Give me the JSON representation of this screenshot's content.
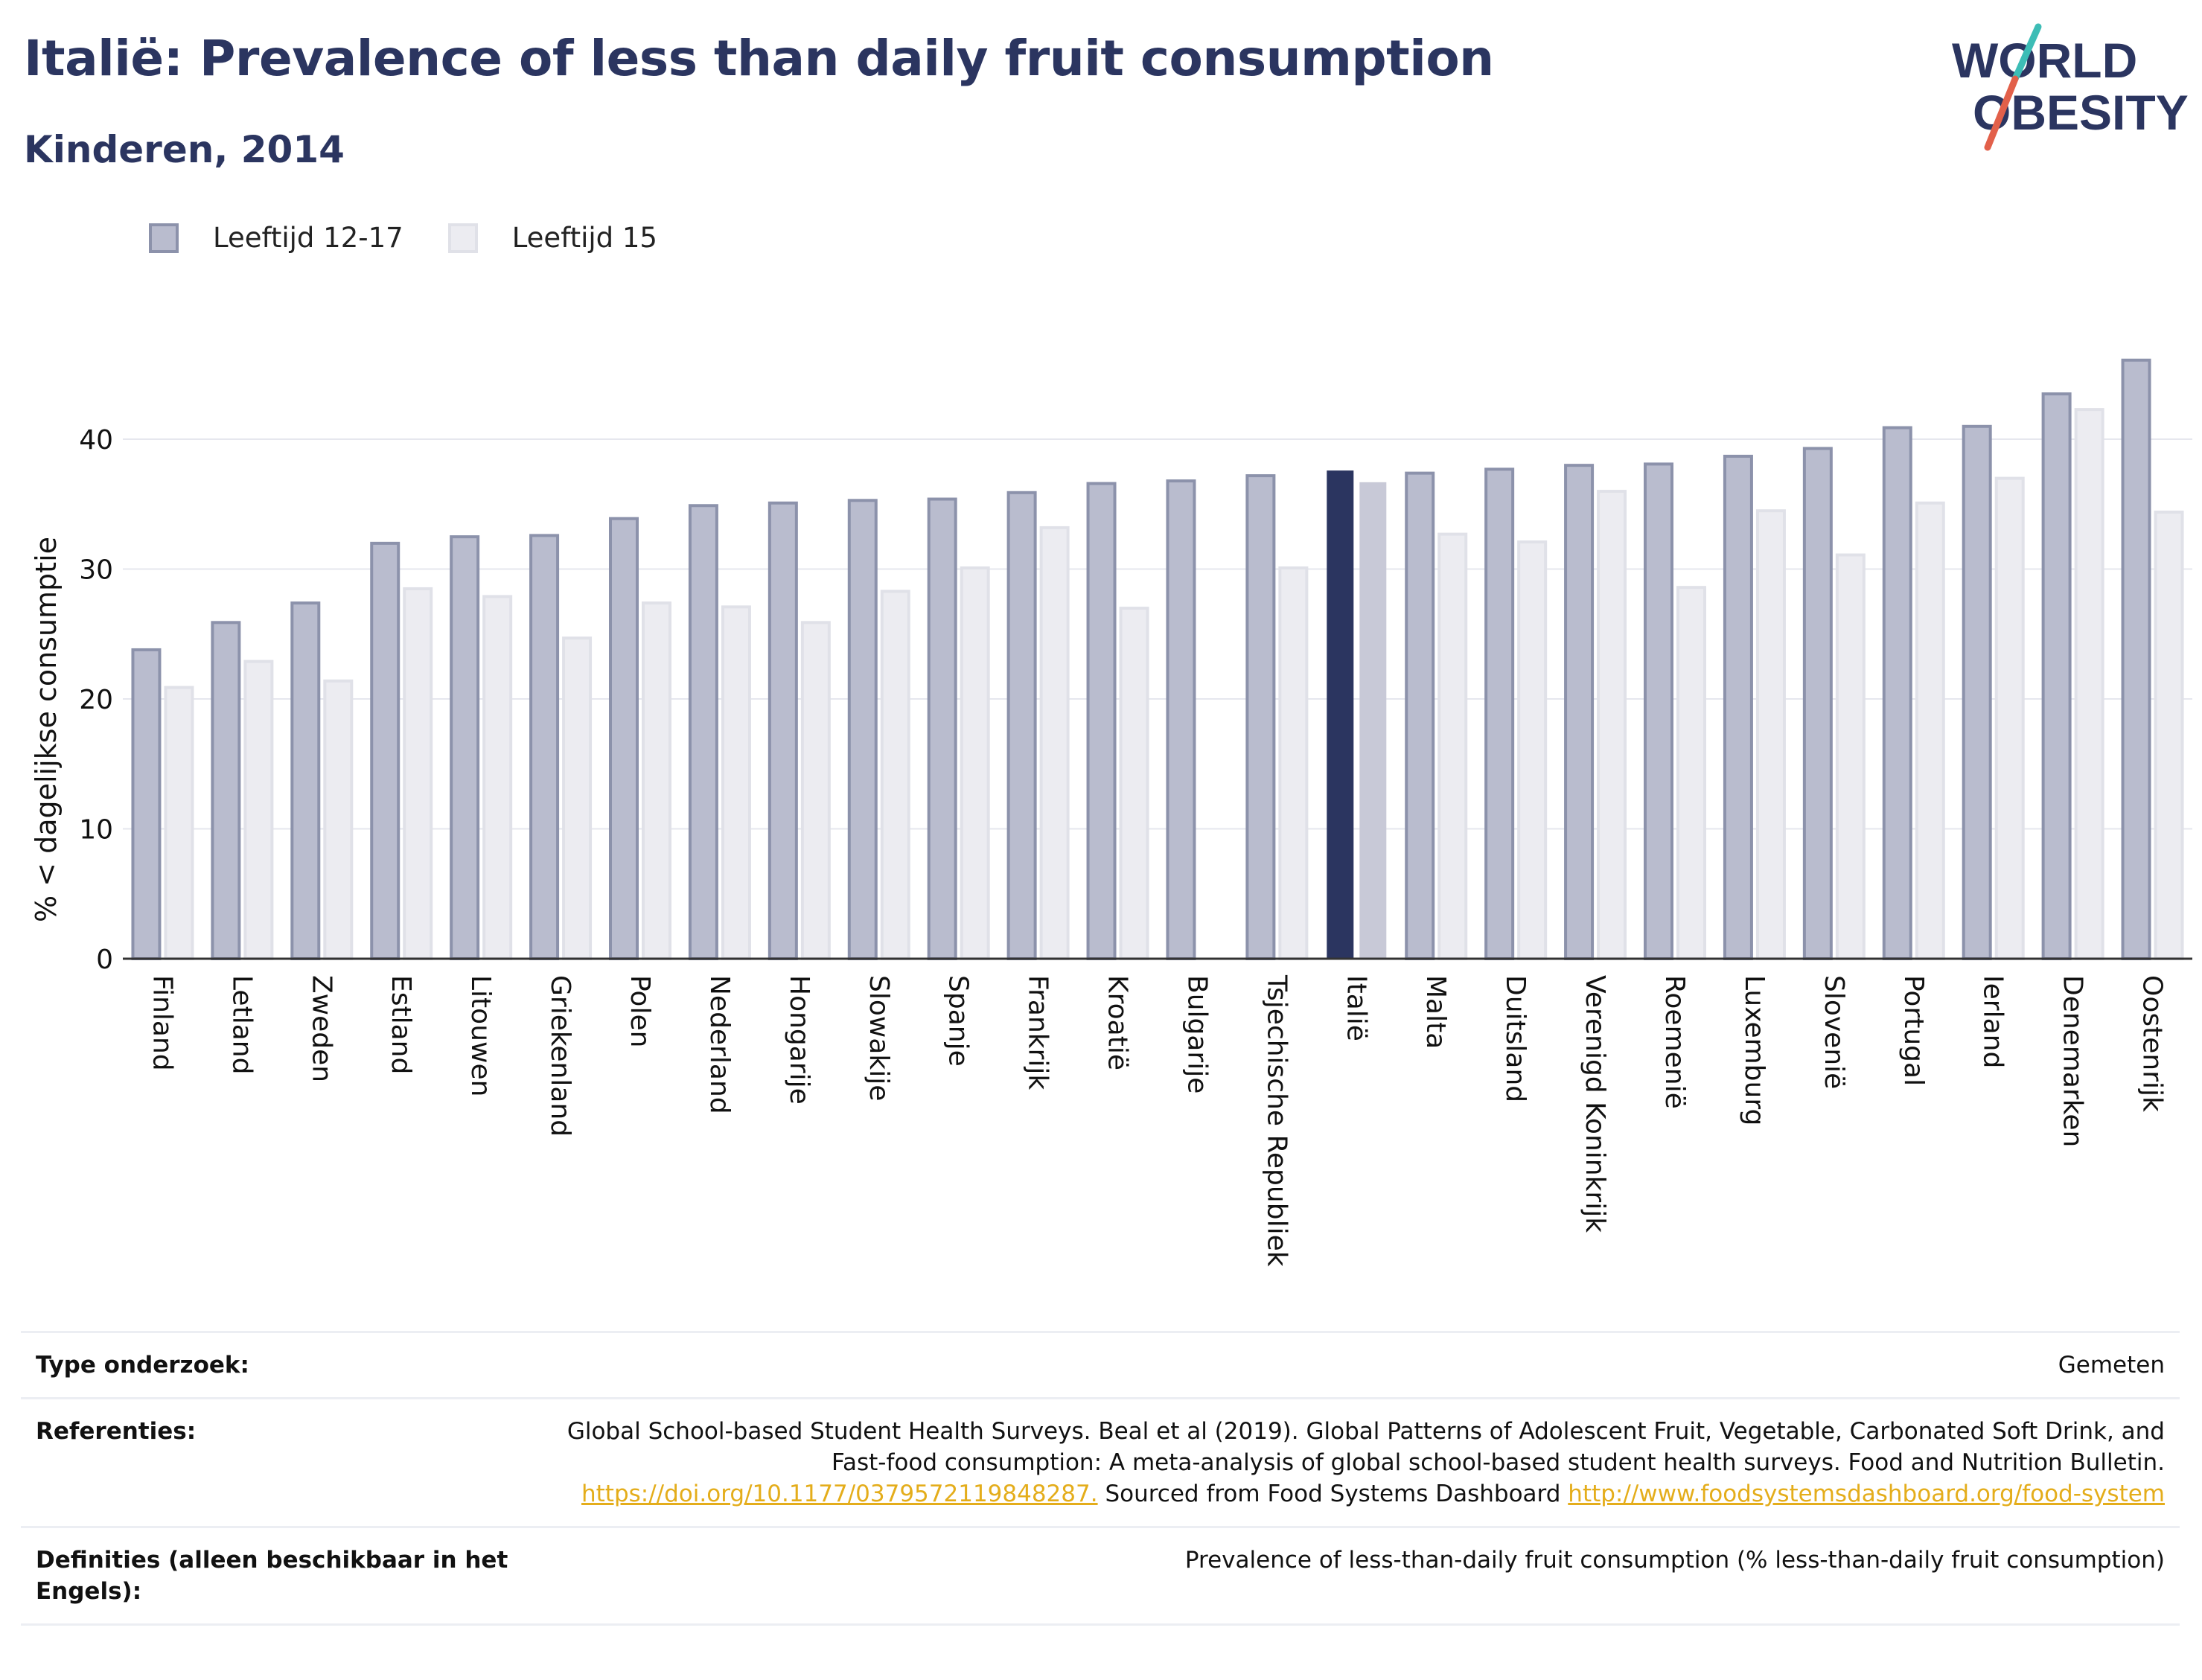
{
  "header": {
    "title": "Italië: Prevalence of less than daily fruit consumption",
    "subtitle": "Kinderen, 2014"
  },
  "logo": {
    "line1": "WORLD",
    "line2": "OBESITY",
    "colors": {
      "text": "#2b3560",
      "slash_top": "#3dbdb6",
      "slash_bottom": "#e2604a"
    }
  },
  "legend": [
    {
      "label": "Leeftijd 12-17",
      "color": "#b9bcce"
    },
    {
      "label": "Leeftijd 15",
      "color": "#ececf1"
    }
  ],
  "chart_data": {
    "type": "bar",
    "title": "Italië: Prevalence of less than daily fruit consumption",
    "subtitle": "Kinderen, 2014",
    "ylabel": "% < dagelijkse consumptie",
    "xlabel": "",
    "ylim": [
      0,
      47
    ],
    "yticks": [
      0,
      10,
      20,
      30,
      40
    ],
    "grid": true,
    "legend_position": "top-left",
    "highlight": "Italië",
    "highlight_colors": {
      "Leeftijd 12-17": "#2b3560",
      "Leeftijd 15": "#c8c9d7"
    },
    "colors": {
      "Leeftijd 12-17": "#b9bcce",
      "Leeftijd 15": "#ececf1"
    },
    "categories": [
      "Finland",
      "Letland",
      "Zweden",
      "Estland",
      "Litouwen",
      "Griekenland",
      "Polen",
      "Nederland",
      "Hongarije",
      "Slowakije",
      "Spanje",
      "Frankrijk",
      "Kroatië",
      "Bulgarije",
      "Tsjechische Republiek",
      "Italië",
      "Malta",
      "Duitsland",
      "Verenigd Koninkrijk",
      "Roemenië",
      "Luxemburg",
      "Slovenië",
      "Portugal",
      "Ierland",
      "Denemarken",
      "Oostenrijk"
    ],
    "series": [
      {
        "name": "Leeftijd 12-17",
        "values": [
          23.9,
          26.0,
          27.5,
          32.1,
          32.6,
          32.7,
          34.0,
          35.0,
          35.2,
          35.4,
          35.5,
          36.0,
          36.7,
          36.9,
          37.3,
          37.7,
          37.5,
          37.8,
          38.1,
          38.2,
          38.8,
          39.4,
          41.0,
          41.1,
          43.6,
          46.2
        ]
      },
      {
        "name": "Leeftijd 15",
        "values": [
          21.0,
          23.0,
          21.5,
          28.6,
          28.0,
          24.8,
          27.5,
          27.2,
          26.0,
          28.4,
          30.2,
          33.3,
          27.1,
          null,
          30.2,
          36.8,
          32.8,
          32.2,
          36.1,
          28.7,
          34.6,
          31.2,
          35.2,
          37.1,
          42.4,
          34.5
        ]
      }
    ]
  },
  "footer": {
    "rows": [
      {
        "label": "Type onderzoek:",
        "value": "Gemeten"
      },
      {
        "label": "Referenties:",
        "value": "Global School-based Student Health Surveys. Beal et al (2019). Global Patterns of Adolescent Fruit, Vegetable, Carbonated Soft Drink, and Fast-food consumption: A meta-analysis of global school-based student health surveys. Food and Nutrition Bulletin.",
        "link1": "https://doi.org/10.1177/0379572119848287.",
        "mid": "Sourced from Food Systems Dashboard",
        "link2": "http://www.foodsystemsdashboard.org/food-system"
      },
      {
        "label": "Definities (alleen beschikbaar in het Engels):",
        "value": "Prevalence of less-than-daily fruit consumption (% less-than-daily fruit consumption)"
      }
    ]
  }
}
